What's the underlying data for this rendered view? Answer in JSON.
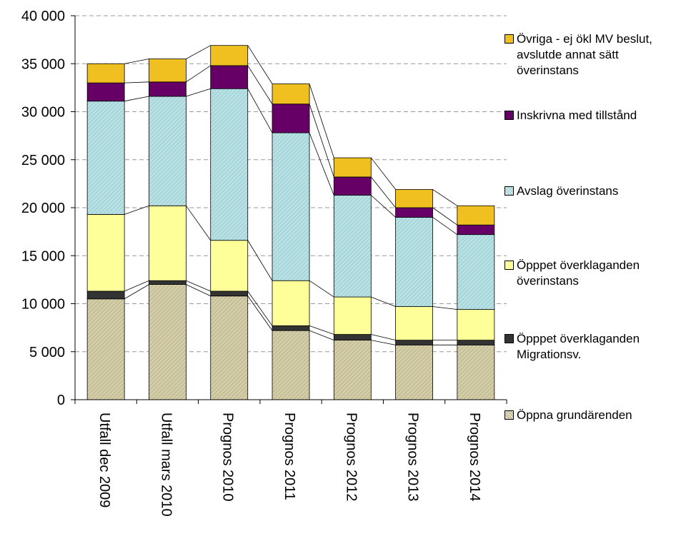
{
  "chart_data": {
    "type": "stacked_bar",
    "categories": [
      "Utfall dec 2009",
      "Utfall mars 2010",
      "Prognos 2010",
      "Prognos 2011",
      "Prognos 2012",
      "Prognos 2013",
      "Prognos 2014"
    ],
    "series": [
      {
        "name": "Öppna grundärenden",
        "color": "#c8c096",
        "values": [
          10500,
          12000,
          10800,
          7200,
          6200,
          5700,
          5700
        ]
      },
      {
        "name": "Öpppet överklaganden Migrationsv.",
        "color": "#333333",
        "values": [
          800,
          400,
          500,
          500,
          600,
          500,
          500
        ]
      },
      {
        "name": "Öpppet överklaganden överinstans",
        "color": "#ffff99",
        "values": [
          8000,
          7800,
          5300,
          4700,
          3900,
          3500,
          3200
        ]
      },
      {
        "name": "Avslag överinstans",
        "color": "#a8d8dc",
        "values": [
          11800,
          11400,
          15800,
          15400,
          10600,
          9300,
          7800
        ]
      },
      {
        "name": "Inskrivna med tillstånd",
        "color": "#660066",
        "values": [
          1900,
          1500,
          2400,
          3000,
          1900,
          1000,
          1000
        ]
      },
      {
        "name": "Övriga - ej ökl MV beslut, avslutde annat sätt överinstans",
        "color": "#f0c020",
        "values": [
          2000,
          2400,
          2100,
          2100,
          2000,
          1900,
          2000
        ]
      }
    ],
    "ylim": [
      0,
      40000
    ],
    "yticks": [
      0,
      {
        "value": 5000,
        "label": "5 000"
      },
      {
        "value": 10000,
        "label": "10 000"
      },
      {
        "value": 15000,
        "label": "15 000"
      },
      {
        "value": 20000,
        "label": "20 000"
      },
      {
        "value": 25000,
        "label": "25 000"
      },
      {
        "value": 30000,
        "label": "30 000"
      },
      {
        "value": 35000,
        "label": "35 000"
      },
      {
        "value": 40000,
        "label": "40 000"
      }
    ],
    "grid": true,
    "legend": "right"
  }
}
